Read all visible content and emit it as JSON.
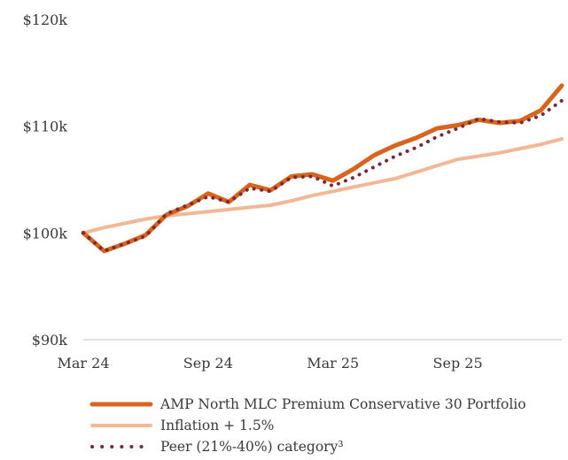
{
  "chart_data": {
    "type": "line",
    "title": "",
    "xlabel": "",
    "ylabel": "",
    "ylim": [
      90000,
      120000
    ],
    "yticks": [
      {
        "value": 120000,
        "label": "$120k"
      },
      {
        "value": 110000,
        "label": "$110k"
      },
      {
        "value": 100000,
        "label": "$100k"
      },
      {
        "value": 90000,
        "label": "$90k"
      }
    ],
    "x": [
      "Mar 24",
      "Apr 24",
      "May 24",
      "Jun 24",
      "Jul 24",
      "Aug 24",
      "Sep 24",
      "Oct 24",
      "Nov 24",
      "Dec 24",
      "Jan 25",
      "Feb 25",
      "Mar 25",
      "Apr 25",
      "May 25",
      "Jun 25",
      "Jul 25",
      "Aug 25",
      "Sep 25",
      "Oct 25",
      "Nov 25",
      "Dec 25",
      "Jan 26",
      "Feb 26"
    ],
    "xticks": [
      {
        "index": 0,
        "label": "Mar 24"
      },
      {
        "index": 6,
        "label": "Sep 24"
      },
      {
        "index": 12,
        "label": "Mar 25"
      },
      {
        "index": 18,
        "label": "Sep 25"
      }
    ],
    "grid": false,
    "legend_position": "bottom",
    "series": [
      {
        "name": "AMP North MLC Premium Conservative 30 Portfolio",
        "color": "#d9641e",
        "style": "solid-thick",
        "values": [
          100000,
          98300,
          99000,
          99800,
          101700,
          102500,
          103700,
          102900,
          104500,
          104000,
          105300,
          105500,
          104900,
          106000,
          107300,
          108200,
          108900,
          109800,
          110100,
          110600,
          110300,
          110500,
          111500,
          113800
        ]
      },
      {
        "name": "Inflation + 1.5%",
        "color": "#f2b795",
        "style": "solid",
        "values": [
          100000,
          100500,
          100900,
          101300,
          101600,
          101800,
          102000,
          102200,
          102400,
          102600,
          103000,
          103500,
          103900,
          104300,
          104700,
          105100,
          105700,
          106300,
          106900,
          107200,
          107500,
          107900,
          108300,
          108800
        ]
      },
      {
        "name": "Peer (21%-40%) category³",
        "color": "#7a2b33",
        "style": "dotted",
        "values": [
          100000,
          98300,
          99000,
          99700,
          101800,
          102600,
          103400,
          102900,
          104200,
          103900,
          105200,
          105300,
          104400,
          105200,
          106200,
          107200,
          108000,
          109000,
          109800,
          110700,
          110400,
          110300,
          111000,
          112400
        ]
      }
    ]
  }
}
